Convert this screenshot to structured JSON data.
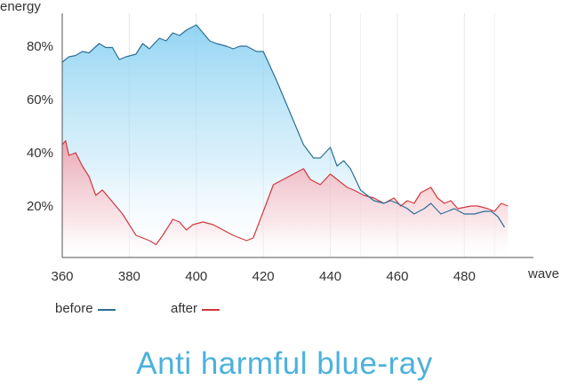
{
  "chart_data": {
    "type": "area",
    "title": "Anti harmful blue-ray",
    "xlabel": "wave",
    "ylabel": "energy",
    "xlim": [
      360,
      495
    ],
    "ylim": [
      0,
      90
    ],
    "x_ticks": [
      360,
      380,
      400,
      420,
      440,
      460,
      480
    ],
    "y_ticks": [
      20,
      40,
      60,
      80
    ],
    "y_tick_labels": [
      "20%",
      "40%",
      "60%",
      "80%"
    ],
    "grid": "vertical",
    "legend_position": "bottom-left",
    "series": [
      {
        "name": "before",
        "color": "#2a6f97",
        "fill_color": "#8fd2f2",
        "points": [
          [
            360,
            74
          ],
          [
            362,
            76
          ],
          [
            364,
            76.5
          ],
          [
            366,
            78
          ],
          [
            368,
            77.5
          ],
          [
            371,
            81
          ],
          [
            373,
            79.5
          ],
          [
            375,
            79.5
          ],
          [
            377,
            75
          ],
          [
            379,
            76
          ],
          [
            382,
            77
          ],
          [
            384,
            81
          ],
          [
            386,
            79
          ],
          [
            389,
            83
          ],
          [
            391,
            82
          ],
          [
            393,
            85
          ],
          [
            395,
            84
          ],
          [
            397,
            86
          ],
          [
            400,
            88
          ],
          [
            402,
            85
          ],
          [
            404,
            82
          ],
          [
            406,
            81
          ],
          [
            409,
            80
          ],
          [
            411,
            79
          ],
          [
            413,
            80
          ],
          [
            415,
            80
          ],
          [
            418,
            78
          ],
          [
            420,
            78
          ],
          [
            424,
            67
          ],
          [
            428,
            55
          ],
          [
            432,
            43
          ],
          [
            435,
            38
          ],
          [
            437,
            38
          ],
          [
            440,
            42
          ],
          [
            442,
            35
          ],
          [
            444,
            37
          ],
          [
            446,
            34
          ],
          [
            449,
            26
          ],
          [
            451,
            24
          ],
          [
            453,
            22
          ],
          [
            456,
            21
          ],
          [
            458,
            22
          ],
          [
            460,
            21
          ],
          [
            463,
            19
          ],
          [
            465,
            17
          ],
          [
            468,
            19
          ],
          [
            470,
            21
          ],
          [
            473,
            17
          ],
          [
            475,
            18
          ],
          [
            477,
            19
          ],
          [
            480,
            17
          ],
          [
            483,
            17
          ],
          [
            486,
            18
          ],
          [
            488,
            18
          ],
          [
            490,
            16
          ],
          [
            492,
            12
          ]
        ]
      },
      {
        "name": "after",
        "color": "#d0393e",
        "fill_color": "#f6b6bd",
        "points": [
          [
            360,
            43
          ],
          [
            361,
            44.5
          ],
          [
            362,
            39
          ],
          [
            364,
            40
          ],
          [
            366,
            35
          ],
          [
            368,
            31
          ],
          [
            370,
            24
          ],
          [
            372,
            26
          ],
          [
            374,
            23
          ],
          [
            378,
            17
          ],
          [
            380,
            13
          ],
          [
            382,
            9
          ],
          [
            384,
            8
          ],
          [
            386,
            7
          ],
          [
            388,
            5.5
          ],
          [
            390,
            9
          ],
          [
            393,
            15
          ],
          [
            395,
            14
          ],
          [
            397,
            11
          ],
          [
            399,
            13
          ],
          [
            402,
            14
          ],
          [
            405,
            13
          ],
          [
            408,
            11
          ],
          [
            411,
            9
          ],
          [
            413,
            8
          ],
          [
            415,
            7
          ],
          [
            417,
            8
          ],
          [
            420,
            18
          ],
          [
            423,
            28
          ],
          [
            426,
            30
          ],
          [
            429,
            32
          ],
          [
            432,
            34
          ],
          [
            434,
            30
          ],
          [
            437,
            28
          ],
          [
            440,
            32
          ],
          [
            442,
            30
          ],
          [
            445,
            27
          ],
          [
            447,
            26
          ],
          [
            450,
            24
          ],
          [
            453,
            23
          ],
          [
            456,
            21
          ],
          [
            459,
            23
          ],
          [
            461,
            20
          ],
          [
            463,
            22
          ],
          [
            465,
            21
          ],
          [
            467,
            25
          ],
          [
            470,
            27
          ],
          [
            472,
            23
          ],
          [
            474,
            21
          ],
          [
            476,
            22
          ],
          [
            478,
            19
          ],
          [
            480,
            19.5
          ],
          [
            482,
            20
          ],
          [
            484,
            20
          ],
          [
            487,
            19
          ],
          [
            489,
            18
          ],
          [
            491,
            21
          ],
          [
            493,
            20
          ]
        ]
      }
    ]
  }
}
